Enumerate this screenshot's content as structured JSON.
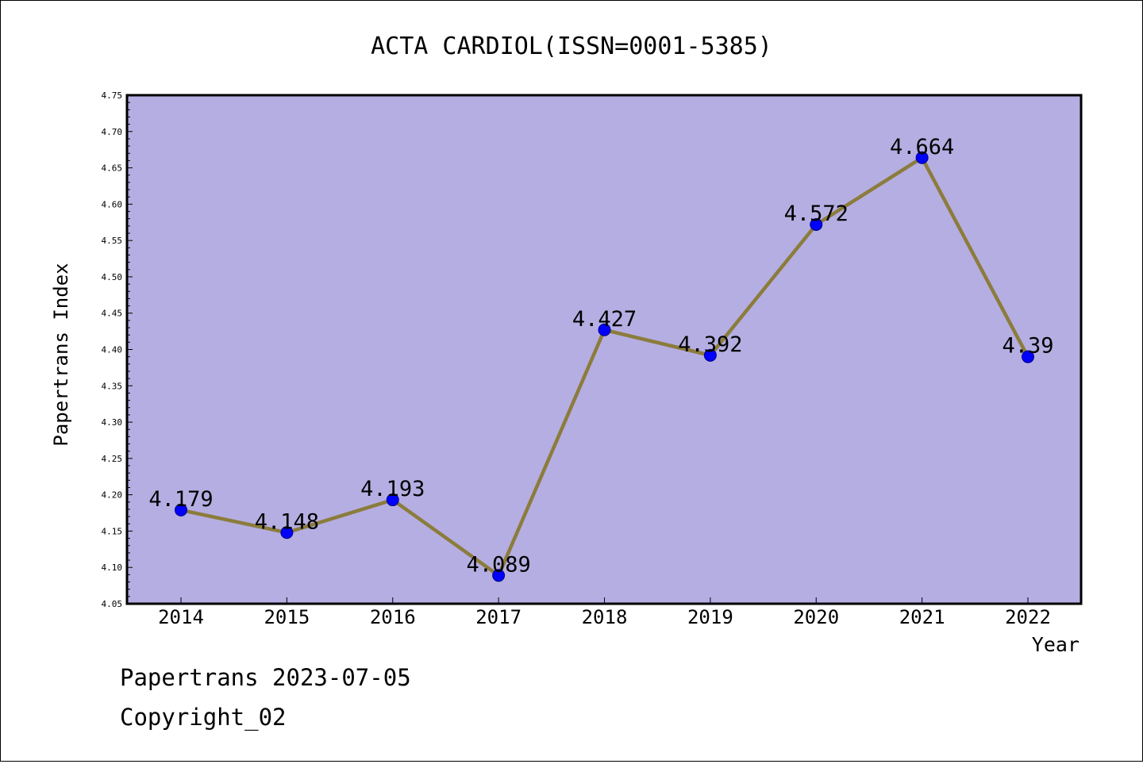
{
  "chart_data": {
    "type": "line",
    "title": "ACTA CARDIOL(ISSN=0001-5385)",
    "xlabel": "Year",
    "ylabel": "Papertrans Index",
    "categories": [
      "2014",
      "2015",
      "2016",
      "2017",
      "2018",
      "2019",
      "2020",
      "2021",
      "2022"
    ],
    "series": [
      {
        "values": [
          4.179,
          4.148,
          4.193,
          4.089,
          4.427,
          4.392,
          4.572,
          4.664,
          4.39
        ],
        "data_labels": [
          "4.179",
          "4.148",
          "4.193",
          "4.089",
          "4.427",
          "4.392",
          "4.572",
          "4.664",
          "4.39"
        ]
      }
    ],
    "ylim": [
      4.05,
      4.75
    ],
    "y_ticks": [
      "4.05",
      "4.10",
      "4.15",
      "4.20",
      "4.25",
      "4.30",
      "4.35",
      "4.40",
      "4.45",
      "4.50",
      "4.55",
      "4.60",
      "4.65",
      "4.70",
      "4.75"
    ],
    "y_minor_step": 0.01,
    "grid": false,
    "legend": "none",
    "colors": {
      "plot_background": "#b5aee2",
      "line": "#8b7c3c",
      "marker": "#0000ff",
      "marker_edge": "#000080"
    }
  },
  "footer": {
    "line1": "Papertrans 2023-07-05",
    "line2": "Copyright_02"
  }
}
